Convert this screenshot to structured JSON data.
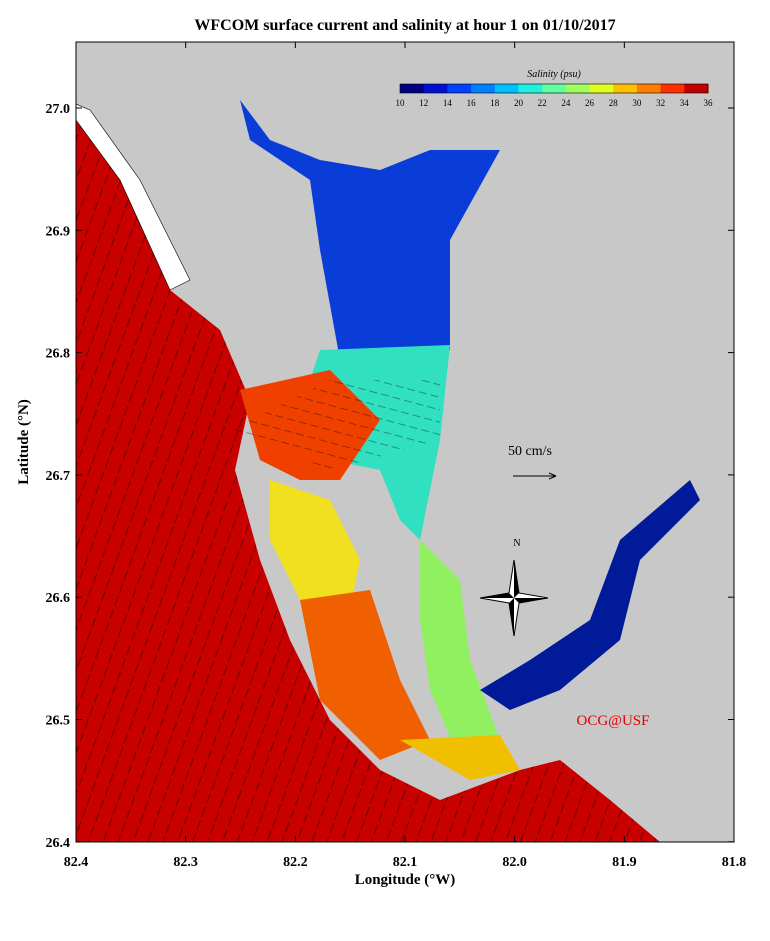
{
  "title": "WFCOM surface current and salinity at hour 1 on 01/10/2017",
  "x_axis": {
    "label": "Longitude (°W)",
    "ticks": [
      "82.4",
      "82.3",
      "82.2",
      "82.1",
      "82.0",
      "81.9",
      "81.8"
    ]
  },
  "y_axis": {
    "label": "Latitude (°N)",
    "ticks": [
      "27.0",
      "26.9",
      "26.8",
      "26.7",
      "26.6",
      "26.5",
      "26.4"
    ]
  },
  "colorbar": {
    "title": "Salinity (psu)",
    "ticks": [
      "10",
      "12",
      "14",
      "16",
      "18",
      "20",
      "22",
      "24",
      "26",
      "28",
      "30",
      "32",
      "34",
      "36"
    ]
  },
  "annotations": {
    "scale": "50 cm/s",
    "north": "N",
    "credit": "OCG@USF"
  }
}
